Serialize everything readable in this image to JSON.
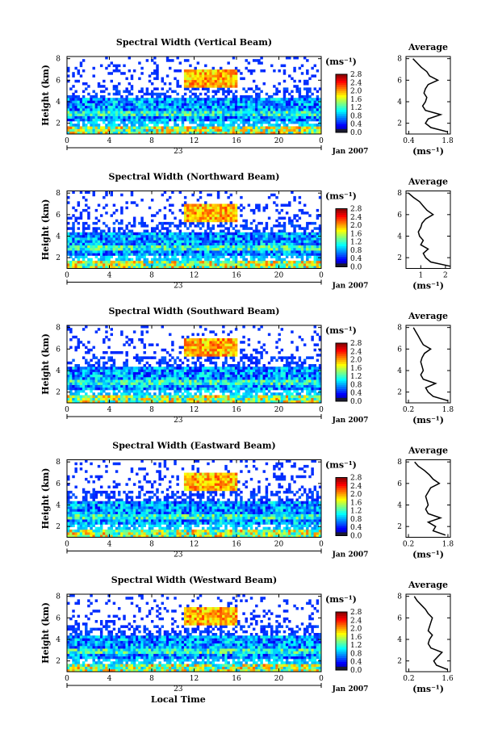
{
  "figure": {
    "xlabel_bottom": "Local Time",
    "date_label": "Jan 2007",
    "day_label": "23",
    "unit_label": "(ms⁻¹)",
    "height_label": "Height (km)",
    "average_title": "Average"
  },
  "chart_data": [
    {
      "type": "heatmap",
      "title": "Spectral Width (Vertical Beam)",
      "xlabel": "",
      "ylabel": "Height (km)",
      "x_ticks": [
        "0",
        "4",
        "8",
        "12",
        "16",
        "20",
        "0"
      ],
      "xlim": [
        0,
        24
      ],
      "y_ticks": [
        "2",
        "4",
        "6",
        "8"
      ],
      "ylim": [
        1,
        8.2
      ],
      "colorbar_ticks": [
        "0.0",
        "0.4",
        "0.8",
        "1.2",
        "1.6",
        "2.0",
        "2.4",
        "2.8"
      ],
      "colorbar_range": [
        0,
        2.8
      ],
      "average": {
        "xlabel": "(ms⁻¹)",
        "x_ticks": [
          "0.4",
          "1.8"
        ],
        "xlim": [
          0.3,
          1.9
        ],
        "y_ticks": [
          "2",
          "4",
          "6",
          "8"
        ],
        "ylim": [
          1,
          8.2
        ],
        "height": [
          1.2,
          1.6,
          2.0,
          2.4,
          2.8,
          3.2,
          3.6,
          4.0,
          4.4,
          4.8,
          5.2,
          5.6,
          6.0,
          6.4,
          6.8,
          7.2,
          7.6,
          8.0
        ],
        "width": [
          1.8,
          1.2,
          1.0,
          1.1,
          1.55,
          1.0,
          0.9,
          1.0,
          1.05,
          0.95,
          1.0,
          1.1,
          1.45,
          1.15,
          1.05,
          0.85,
          0.7,
          0.55
        ]
      }
    },
    {
      "type": "heatmap",
      "title": "Spectral Width (Northward Beam)",
      "xlabel": "",
      "ylabel": "Height (km)",
      "x_ticks": [
        "0",
        "4",
        "8",
        "12",
        "16",
        "20",
        "0"
      ],
      "xlim": [
        0,
        24
      ],
      "y_ticks": [
        "2",
        "4",
        "6",
        "8"
      ],
      "ylim": [
        1,
        8.2
      ],
      "colorbar_ticks": [
        "0.0",
        "0.4",
        "0.8",
        "1.2",
        "1.6",
        "2.0",
        "2.4",
        "2.8"
      ],
      "colorbar_range": [
        0,
        2.8
      ],
      "average": {
        "xlabel": "(ms⁻¹)",
        "x_ticks": [
          "1",
          "2"
        ],
        "xlim": [
          0.4,
          2.2
        ],
        "y_ticks": [
          "2",
          "4",
          "6",
          "8"
        ],
        "ylim": [
          1,
          8.2
        ],
        "height": [
          1.2,
          1.6,
          2.0,
          2.4,
          2.8,
          3.2,
          3.6,
          4.0,
          4.4,
          4.8,
          5.2,
          5.6,
          6.0,
          6.4,
          6.8,
          7.2,
          7.6,
          8.0
        ],
        "width": [
          2.2,
          1.4,
          1.2,
          1.1,
          1.3,
          1.0,
          1.1,
          0.95,
          0.9,
          1.0,
          1.05,
          1.2,
          1.5,
          1.25,
          1.1,
          0.95,
          0.7,
          0.5
        ]
      }
    },
    {
      "type": "heatmap",
      "title": "Spectral Width (Southward Beam)",
      "xlabel": "",
      "ylabel": "Height (km)",
      "x_ticks": [
        "0",
        "4",
        "8",
        "12",
        "16",
        "20",
        "0"
      ],
      "xlim": [
        0,
        24
      ],
      "y_ticks": [
        "2",
        "4",
        "6",
        "8"
      ],
      "ylim": [
        1,
        8.2
      ],
      "colorbar_ticks": [
        "0.0",
        "0.4",
        "0.8",
        "1.2",
        "1.6",
        "2.0",
        "2.4",
        "2.8"
      ],
      "colorbar_range": [
        0,
        2.8
      ],
      "average": {
        "xlabel": "(ms⁻¹)",
        "x_ticks": [
          "0.2",
          "1.8"
        ],
        "xlim": [
          0.1,
          1.9
        ],
        "y_ticks": [
          "2",
          "4",
          "6",
          "8"
        ],
        "ylim": [
          1,
          8.2
        ],
        "height": [
          1.2,
          1.6,
          2.0,
          2.4,
          2.8,
          3.2,
          3.6,
          4.0,
          4.4,
          4.8,
          5.2,
          5.6,
          6.0,
          6.4,
          6.8,
          7.2,
          7.6,
          8.0
        ],
        "width": [
          1.8,
          1.2,
          1.0,
          0.9,
          1.3,
          0.8,
          0.7,
          0.8,
          0.75,
          0.7,
          0.75,
          0.85,
          1.1,
          0.8,
          0.7,
          0.6,
          0.5,
          0.4
        ]
      }
    },
    {
      "type": "heatmap",
      "title": "Spectral Width (Eastward Beam)",
      "xlabel": "",
      "ylabel": "Height (km)",
      "x_ticks": [
        "0",
        "4",
        "8",
        "12",
        "16",
        "20",
        "0"
      ],
      "xlim": [
        0,
        24
      ],
      "y_ticks": [
        "2",
        "4",
        "6",
        "8"
      ],
      "ylim": [
        1,
        8.2
      ],
      "colorbar_ticks": [
        "0.0",
        "0.4",
        "0.8",
        "1.2",
        "1.6",
        "2.0",
        "2.4",
        "2.8"
      ],
      "colorbar_range": [
        0,
        2.8
      ],
      "average": {
        "xlabel": "(ms⁻¹)",
        "x_ticks": [
          "0.2",
          "1.8"
        ],
        "xlim": [
          0.1,
          1.9
        ],
        "y_ticks": [
          "2",
          "4",
          "6",
          "8"
        ],
        "ylim": [
          1,
          8.2
        ],
        "height": [
          1.2,
          1.6,
          2.0,
          2.4,
          2.8,
          3.2,
          3.6,
          4.0,
          4.4,
          4.8,
          5.2,
          5.6,
          6.0,
          6.4,
          6.8,
          7.2,
          7.6,
          8.0
        ],
        "width": [
          1.7,
          1.2,
          1.3,
          1.0,
          1.5,
          1.0,
          0.9,
          1.0,
          0.95,
          0.9,
          1.0,
          1.1,
          1.45,
          1.2,
          1.05,
          0.85,
          0.6,
          0.45
        ]
      }
    },
    {
      "type": "heatmap",
      "title": "Spectral Width (Westward Beam)",
      "xlabel": "Local Time",
      "ylabel": "Height (km)",
      "x_ticks": [
        "0",
        "4",
        "8",
        "12",
        "16",
        "20",
        "0"
      ],
      "xlim": [
        0,
        24
      ],
      "y_ticks": [
        "2",
        "4",
        "6",
        "8"
      ],
      "ylim": [
        1,
        8.2
      ],
      "colorbar_ticks": [
        "0.0",
        "0.4",
        "0.8",
        "1.2",
        "1.6",
        "2.0",
        "2.4",
        "2.8"
      ],
      "colorbar_range": [
        0,
        2.8
      ],
      "average": {
        "xlabel": "(ms⁻¹)",
        "x_ticks": [
          "0.2",
          "1.6"
        ],
        "xlim": [
          0.1,
          1.7
        ],
        "y_ticks": [
          "2",
          "4",
          "6",
          "8"
        ],
        "ylim": [
          1,
          8.2
        ],
        "height": [
          1.2,
          1.6,
          2.0,
          2.4,
          2.8,
          3.2,
          3.6,
          4.0,
          4.4,
          4.8,
          5.2,
          5.6,
          6.0,
          6.4,
          6.8,
          7.2,
          7.6,
          8.0
        ],
        "width": [
          1.6,
          1.2,
          1.1,
          1.25,
          1.4,
          1.0,
          0.9,
          0.95,
          1.05,
          0.9,
          0.95,
          1.0,
          1.05,
          0.9,
          0.8,
          0.65,
          0.5,
          0.4
        ]
      }
    }
  ]
}
